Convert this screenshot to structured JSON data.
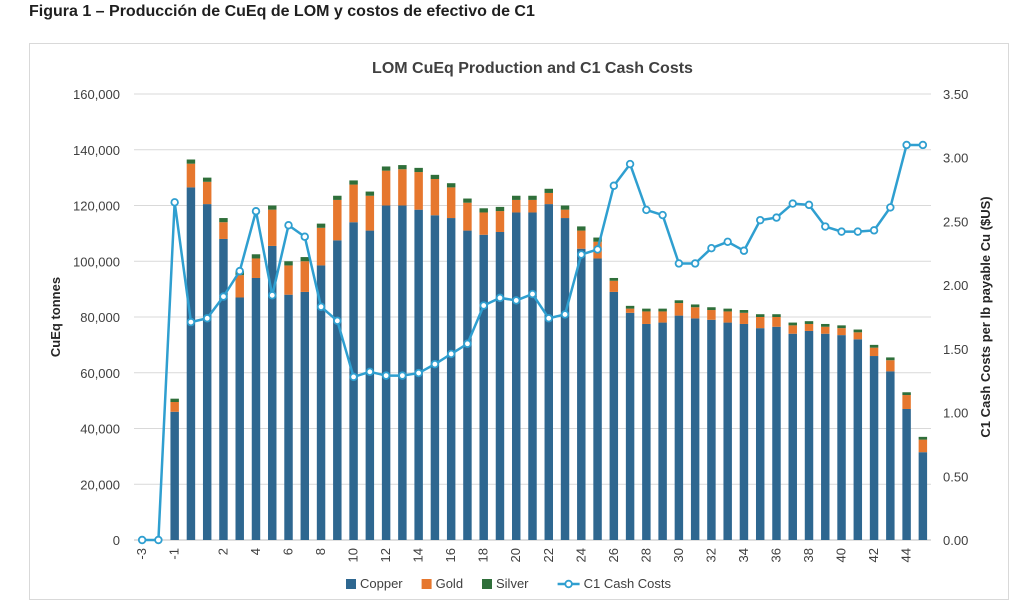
{
  "figure_title": "Figura 1 – Producción de CuEq de LOM y costos de efectivo de C1",
  "chart_data": {
    "type": "bar",
    "stacked": true,
    "title": "LOM CuEq Production and C1 Cash Costs",
    "ylabel": "CuEq tonnes",
    "y2label": "C1 Cash Costs per lb payable Cu ($US)",
    "ylim": [
      0,
      160000
    ],
    "y2lim": [
      0,
      3.5
    ],
    "yticks": [
      "0",
      "20,000",
      "40,000",
      "60,000",
      "80,000",
      "100,000",
      "120,000",
      "140,000",
      "160,000"
    ],
    "y2ticks": [
      "0.00",
      "0.50",
      "1.00",
      "1.50",
      "2.00",
      "2.50",
      "3.00",
      "3.50"
    ],
    "grid": true,
    "legend_position": "bottom",
    "x": [
      -3,
      -2,
      -1,
      0,
      1,
      2,
      3,
      4,
      5,
      6,
      7,
      8,
      9,
      10,
      11,
      12,
      13,
      14,
      15,
      16,
      17,
      18,
      19,
      20,
      21,
      22,
      23,
      24,
      25,
      26,
      27,
      28,
      29,
      30,
      31,
      32,
      33,
      34,
      35,
      36,
      37,
      38,
      39,
      40,
      41,
      42,
      43,
      44,
      45
    ],
    "xticklabels": [
      "-3",
      "-1",
      "2",
      "4",
      "6",
      "8",
      "10",
      "12",
      "14",
      "16",
      "18",
      "20",
      "22",
      "24",
      "26",
      "28",
      "30",
      "32",
      "34",
      "36",
      "38",
      "40",
      "42",
      "44"
    ],
    "series": [
      {
        "name": "Copper",
        "kind": "bar",
        "color": "#2e6790",
        "values": [
          0,
          0,
          46000,
          126500,
          120500,
          108000,
          87000,
          94000,
          105500,
          88000,
          89000,
          98500,
          107500,
          114000,
          111000,
          120000,
          120000,
          118500,
          116500,
          115500,
          111000,
          109500,
          110500,
          117500,
          117500,
          120500,
          115500,
          104500,
          101000,
          89000,
          81500,
          77500,
          78000,
          80500,
          79500,
          79000,
          78000,
          77500,
          76000,
          76500,
          74000,
          75000,
          74000,
          73500,
          72000,
          66000,
          60500,
          47000,
          31500
        ]
      },
      {
        "name": "Gold",
        "kind": "bar",
        "color": "#e6772e",
        "values": [
          0,
          0,
          3500,
          8500,
          8000,
          6000,
          8000,
          7000,
          13000,
          10500,
          11000,
          13500,
          14500,
          13500,
          12500,
          12500,
          13000,
          13500,
          13000,
          11000,
          10000,
          8000,
          7500,
          4500,
          4500,
          4000,
          3000,
          6500,
          6000,
          4000,
          1500,
          4500,
          4000,
          4500,
          4000,
          3500,
          4000,
          4000,
          4000,
          3500,
          3000,
          2500,
          2500,
          2500,
          2500,
          3000,
          4000,
          5000,
          4500
        ]
      },
      {
        "name": "Silver",
        "kind": "bar",
        "color": "#2f6f3a",
        "values": [
          0,
          0,
          1200,
          1500,
          1500,
          1500,
          1500,
          1500,
          1500,
          1500,
          1500,
          1500,
          1500,
          1500,
          1500,
          1500,
          1500,
          1500,
          1500,
          1500,
          1500,
          1500,
          1500,
          1500,
          1500,
          1500,
          1500,
          1500,
          1500,
          1000,
          1000,
          1000,
          1000,
          1000,
          1000,
          1000,
          1000,
          1000,
          1000,
          1000,
          1000,
          1000,
          1000,
          1000,
          1000,
          1000,
          1000,
          1000,
          1000
        ]
      },
      {
        "name": "C1 Cash Costs",
        "kind": "line",
        "axis": "right",
        "color": "#2f9fd0",
        "values": [
          0.0,
          0.0,
          2.65,
          1.71,
          1.74,
          1.91,
          2.11,
          2.58,
          1.92,
          2.47,
          2.38,
          1.83,
          1.72,
          1.28,
          1.32,
          1.29,
          1.29,
          1.31,
          1.38,
          1.46,
          1.54,
          1.84,
          1.9,
          1.88,
          1.93,
          1.74,
          1.77,
          2.24,
          2.28,
          2.78,
          2.95,
          2.59,
          2.55,
          2.17,
          2.17,
          2.29,
          2.34,
          2.27,
          2.51,
          2.53,
          2.64,
          2.63,
          2.46,
          2.42,
          2.42,
          2.43,
          2.61,
          3.1,
          3.1
        ]
      }
    ]
  }
}
